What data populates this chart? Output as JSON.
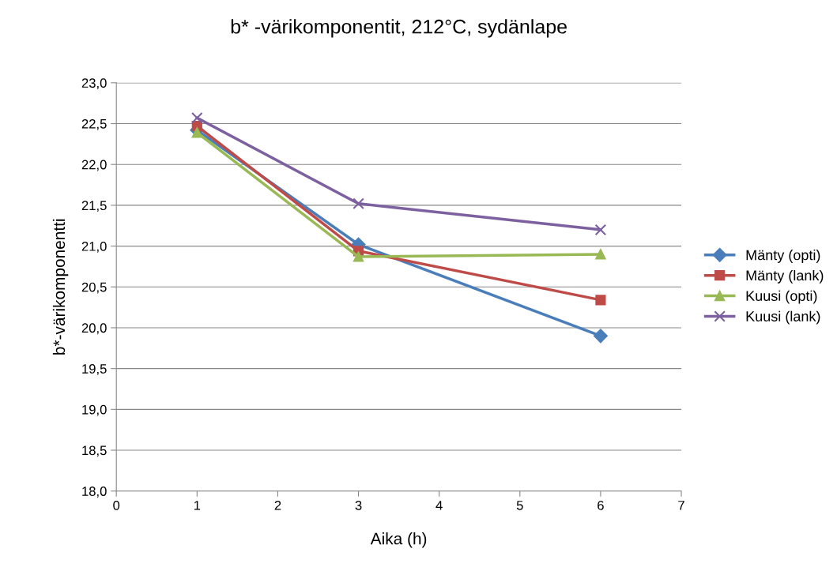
{
  "chart_data": {
    "type": "line",
    "title": "b* -värikomponentit, 212°C, sydänlape",
    "xlabel": "Aika (h)",
    "ylabel": "b*-värikomponentti",
    "x": [
      1,
      3,
      6
    ],
    "series": [
      {
        "name": "Mänty (opti)",
        "color": "#4a7ebb",
        "marker": "diamond",
        "values": [
          22.42,
          21.02,
          19.9
        ]
      },
      {
        "name": "Mänty (lank)",
        "color": "#be4b48",
        "marker": "square",
        "values": [
          22.47,
          20.94,
          20.34
        ]
      },
      {
        "name": "Kuusi (opti)",
        "color": "#98b954",
        "marker": "triangle",
        "values": [
          22.39,
          20.87,
          20.9
        ]
      },
      {
        "name": "Kuusi (lank)",
        "color": "#7d60a0",
        "marker": "cross",
        "values": [
          22.57,
          21.52,
          21.2
        ]
      }
    ],
    "xlim": [
      0,
      7
    ],
    "xticks": [
      0,
      1,
      2,
      3,
      4,
      5,
      6,
      7
    ],
    "ylim": [
      18,
      23
    ],
    "yticks": [
      {
        "value": 18,
        "label": "18,0"
      },
      {
        "value": 18.5,
        "label": "18,5"
      },
      {
        "value": 19,
        "label": "19,0"
      },
      {
        "value": 19.5,
        "label": "19,5"
      },
      {
        "value": 20,
        "label": "20,0"
      },
      {
        "value": 20.5,
        "label": "20,5"
      },
      {
        "value": 21,
        "label": "21,0"
      },
      {
        "value": 21.5,
        "label": "21,5"
      },
      {
        "value": 22,
        "label": "22,0"
      },
      {
        "value": 22.5,
        "label": "22,5"
      },
      {
        "value": 23,
        "label": "23,0"
      }
    ],
    "grid": "y",
    "legend": "right",
    "line_style": "solid"
  }
}
